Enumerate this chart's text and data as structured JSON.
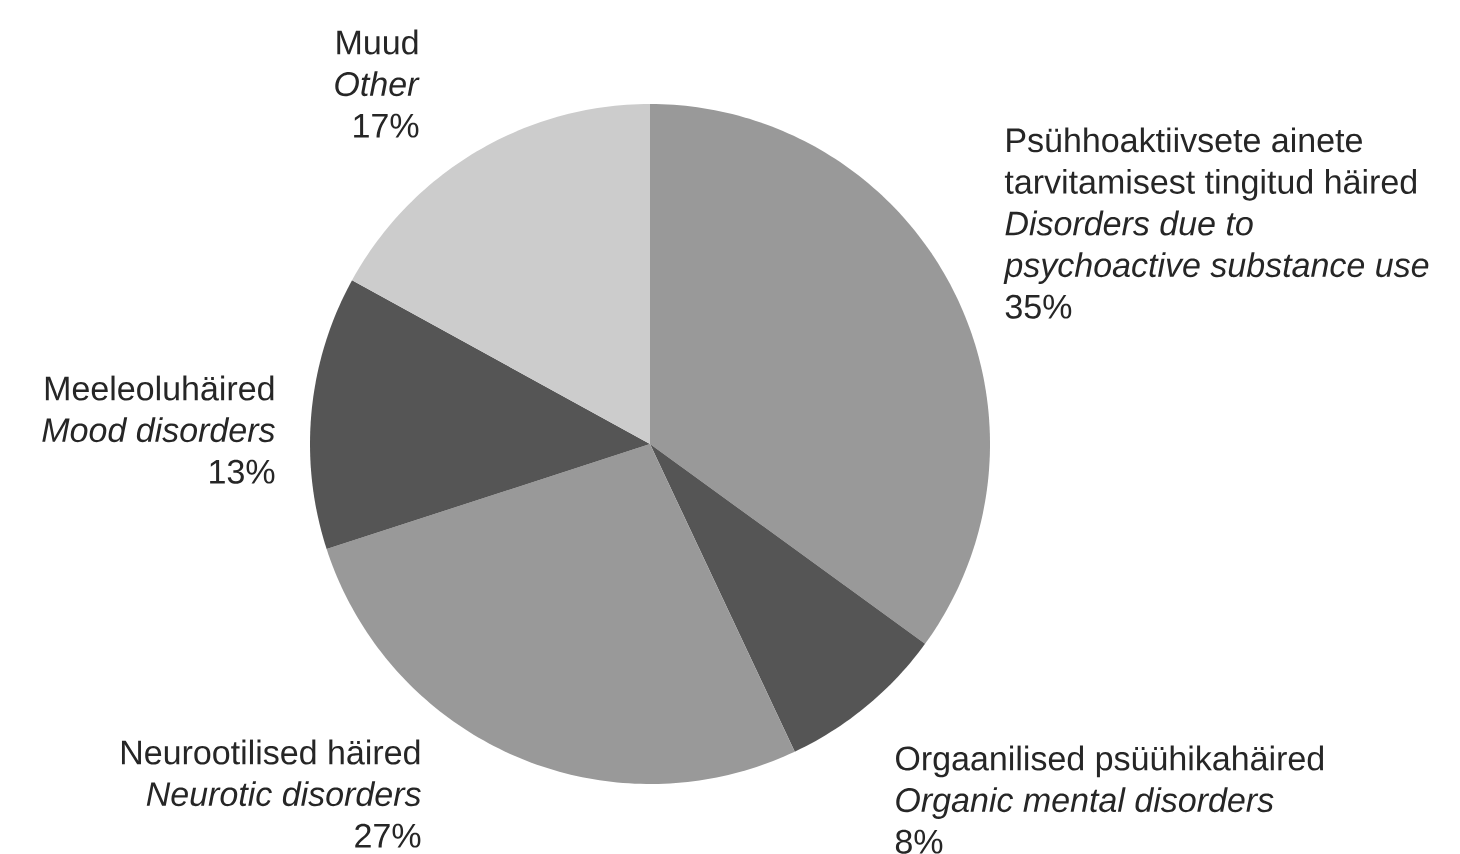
{
  "chart_data": {
    "type": "pie",
    "categories": [
      "Psühhoaktiivsete ainete tarvitamisest tingitud häired *Disorders due to psychoactive substance use*",
      "Orgaanilised psüühikahäired *Organic mental disorders*",
      "Neurootilised häired *Neurotic disorders*",
      "Meeleoluhäired *Mood disorders*",
      "Muud *Other*"
    ],
    "values": [
      35,
      8,
      27,
      13,
      17
    ],
    "colors": [
      "#999999",
      "#555555",
      "#999999",
      "#555555",
      "#cccccc"
    ],
    "value_labels": [
      "35%",
      "8%",
      "27%",
      "13%",
      "17%"
    ]
  }
}
